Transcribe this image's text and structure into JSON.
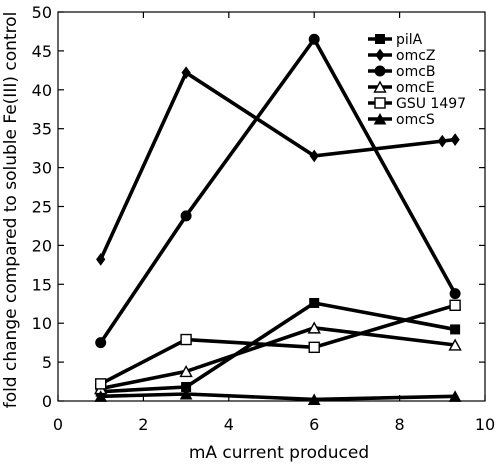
{
  "chart_data": {
    "type": "line",
    "title": "",
    "xlabel": "mA current produced",
    "ylabel": "fold change compared to soluble Fe(III) control",
    "xlim": [
      0,
      10
    ],
    "ylim": [
      0,
      50
    ],
    "xticks": [
      0,
      2,
      4,
      6,
      8,
      10
    ],
    "yticks": [
      0,
      5,
      10,
      15,
      20,
      25,
      30,
      35,
      40,
      45,
      50
    ],
    "grid": false,
    "legend_position": "top-right",
    "line_color": "#000000",
    "series": [
      {
        "name": "pilA",
        "marker": "filled-square",
        "x": [
          1,
          3,
          6,
          9.3
        ],
        "y": [
          1.2,
          1.8,
          12.6,
          9.2
        ]
      },
      {
        "name": "omcZ",
        "marker": "filled-diamond",
        "x": [
          1,
          3,
          6,
          9,
          9.3
        ],
        "y": [
          18.2,
          42.2,
          31.5,
          33.4,
          33.6
        ]
      },
      {
        "name": "omcB",
        "marker": "filled-circle",
        "x": [
          1,
          3,
          6,
          9.3
        ],
        "y": [
          7.5,
          23.8,
          46.5,
          13.8
        ]
      },
      {
        "name": "omcE",
        "marker": "open-triangle",
        "x": [
          1,
          3,
          6,
          9.3
        ],
        "y": [
          1.6,
          3.8,
          9.4,
          7.2
        ]
      },
      {
        "name": "GSU 1497",
        "marker": "open-square",
        "x": [
          1,
          3,
          6,
          9.3
        ],
        "y": [
          2.2,
          7.9,
          6.9,
          12.3
        ]
      },
      {
        "name": "omcS",
        "marker": "filled-triangle",
        "x": [
          1,
          3,
          6,
          9.3
        ],
        "y": [
          0.6,
          0.9,
          0.2,
          0.6
        ]
      }
    ]
  }
}
